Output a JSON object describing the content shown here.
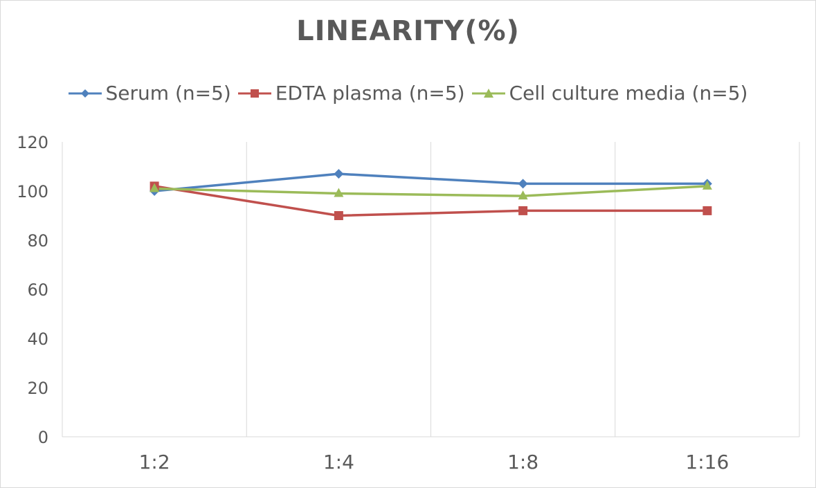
{
  "chart_data": {
    "type": "line",
    "title": "LINEARITY(%)",
    "categories": [
      "1:2",
      "1:4",
      "1:8",
      "1:16"
    ],
    "series": [
      {
        "name": "Serum (n=5)",
        "values": [
          100,
          107,
          103,
          103
        ],
        "color": "#4f81bd",
        "marker": "diamond"
      },
      {
        "name": "EDTA plasma (n=5)",
        "values": [
          102,
          90,
          92,
          92
        ],
        "color": "#c0504d",
        "marker": "square"
      },
      {
        "name": "Cell culture media (n=5)",
        "values": [
          101,
          99,
          98,
          102
        ],
        "color": "#9bbb59",
        "marker": "triangle"
      }
    ],
    "ylim": [
      0,
      120
    ],
    "yticks": [
      0,
      20,
      40,
      60,
      80,
      100,
      120
    ],
    "grid": "vertical category lines",
    "legend_position": "top"
  }
}
